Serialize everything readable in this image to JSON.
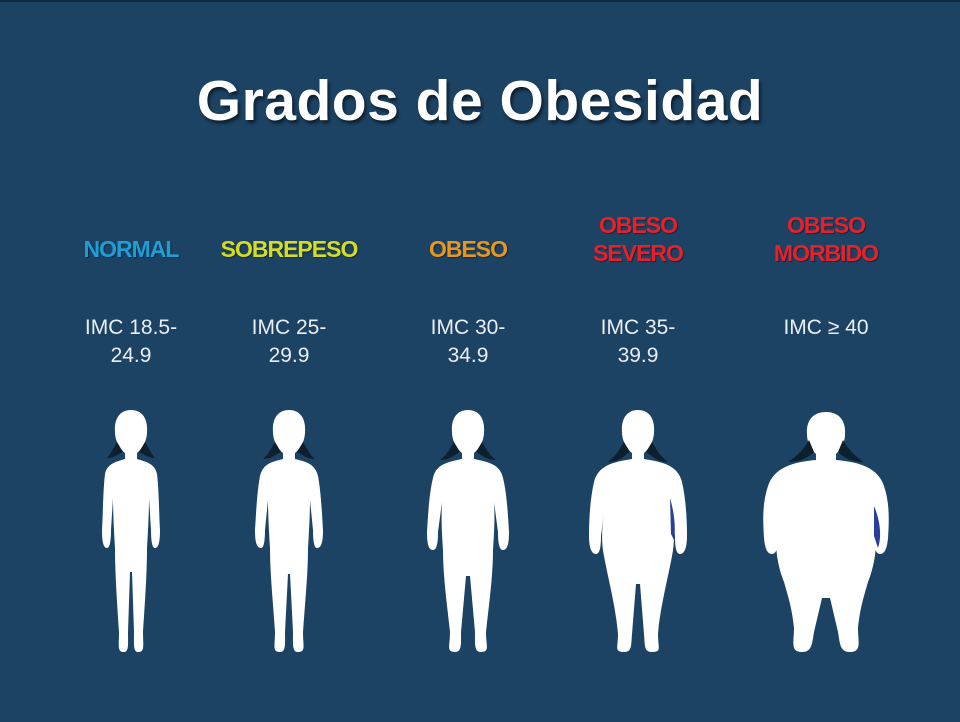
{
  "title": "Grados de Obesidad",
  "categories": [
    {
      "label_lines": [
        "NORMAL"
      ],
      "color": "#1f9ed6",
      "imc_lines": [
        "IMC 18.5-",
        "24.9"
      ]
    },
    {
      "label_lines": [
        "SOBREPESO"
      ],
      "color": "#d6dd1e",
      "imc_lines": [
        "IMC 25-",
        "29.9"
      ]
    },
    {
      "label_lines": [
        "OBESO"
      ],
      "color": "#e7961e",
      "imc_lines": [
        "IMC 30-",
        "34.9"
      ]
    },
    {
      "label_lines": [
        "OBESO",
        "SEVERO"
      ],
      "color": "#e8202a",
      "imc_lines": [
        "IMC 35-",
        "39.9"
      ]
    },
    {
      "label_lines": [
        "OBESO",
        "MORBIDO"
      ],
      "color": "#e8202a",
      "imc_lines": [
        "IMC ≥ 40"
      ]
    }
  ]
}
